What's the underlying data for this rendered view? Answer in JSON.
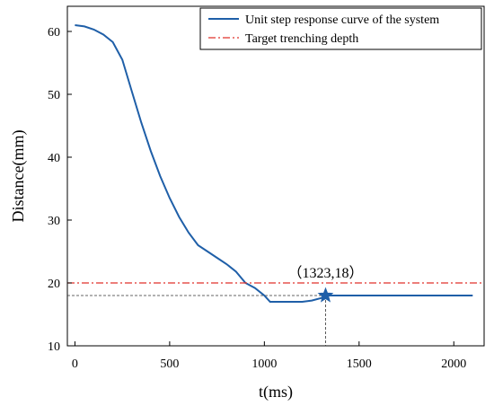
{
  "chart_data": {
    "type": "line",
    "xlabel": "t(ms)",
    "ylabel": "Distance(mm)",
    "xlim": [
      -40,
      2160
    ],
    "ylim": [
      10,
      64
    ],
    "xticks": [
      0,
      500,
      1000,
      1500,
      2000
    ],
    "yticks": [
      10,
      20,
      30,
      40,
      50,
      60
    ],
    "grid": false,
    "legend_position": "top-right",
    "series": [
      {
        "name": "Unit step response curve of the system",
        "color": "#1f5fa8",
        "style": "solid",
        "x": [
          0,
          50,
          100,
          150,
          200,
          250,
          300,
          350,
          400,
          450,
          500,
          550,
          600,
          650,
          700,
          750,
          800,
          850,
          900,
          950,
          1000,
          1030,
          1100,
          1200,
          1250,
          1300,
          1323,
          1400,
          1600,
          1800,
          2000,
          2100
        ],
        "y": [
          61,
          60.8,
          60.3,
          59.5,
          58.3,
          55.5,
          50.5,
          45.5,
          41,
          37,
          33.5,
          30.5,
          28,
          26,
          25,
          24,
          23,
          21.8,
          20,
          19.2,
          18,
          17,
          17,
          17,
          17.2,
          17.6,
          18,
          18,
          18,
          18,
          18,
          18
        ]
      },
      {
        "name": "Target trenching depth",
        "color": "#e0302a",
        "style": "dashdot",
        "x": [
          -40,
          2160
        ],
        "y": [
          20,
          20
        ]
      }
    ],
    "annotations": [
      {
        "text": "（1323,18）",
        "x": 1323,
        "y": 18,
        "marker": "star"
      }
    ],
    "reference_lines": {
      "x": 1323,
      "y": 18
    }
  }
}
